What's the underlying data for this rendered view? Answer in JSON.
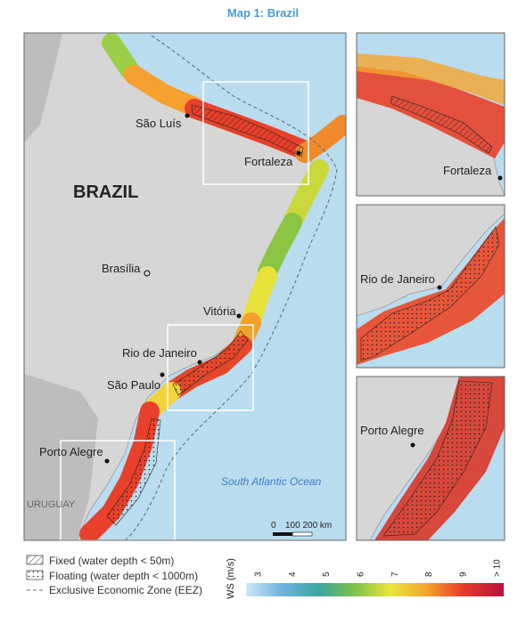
{
  "title": "Map 1: Brazil",
  "main_map": {
    "country_label": "BRAZIL",
    "cities": [
      "São Luís",
      "Fortaleza",
      "Brasília",
      "Vitória",
      "Rio de Janeiro",
      "São Paulo",
      "Porto Alegre"
    ],
    "neighbor_label": "URUGUAY",
    "ocean_label": "South Atlantic Ocean",
    "scale_bar": {
      "start": "0",
      "rest": "100 200 km"
    }
  },
  "insets": [
    {
      "city": "Fortaleza"
    },
    {
      "city": "Rio de Janeiro"
    },
    {
      "city": "Porto Alegre"
    }
  ],
  "legend": {
    "items": [
      "Fixed (water depth < 50m)",
      "Floating (water depth < 1000m)",
      "Exclusive Economic Zone (EEZ)"
    ]
  },
  "colorbar": {
    "label": "WS (m/s)",
    "ticks": [
      "3",
      "4",
      "5",
      "6",
      "7",
      "8",
      "9",
      "> 10"
    ]
  }
}
